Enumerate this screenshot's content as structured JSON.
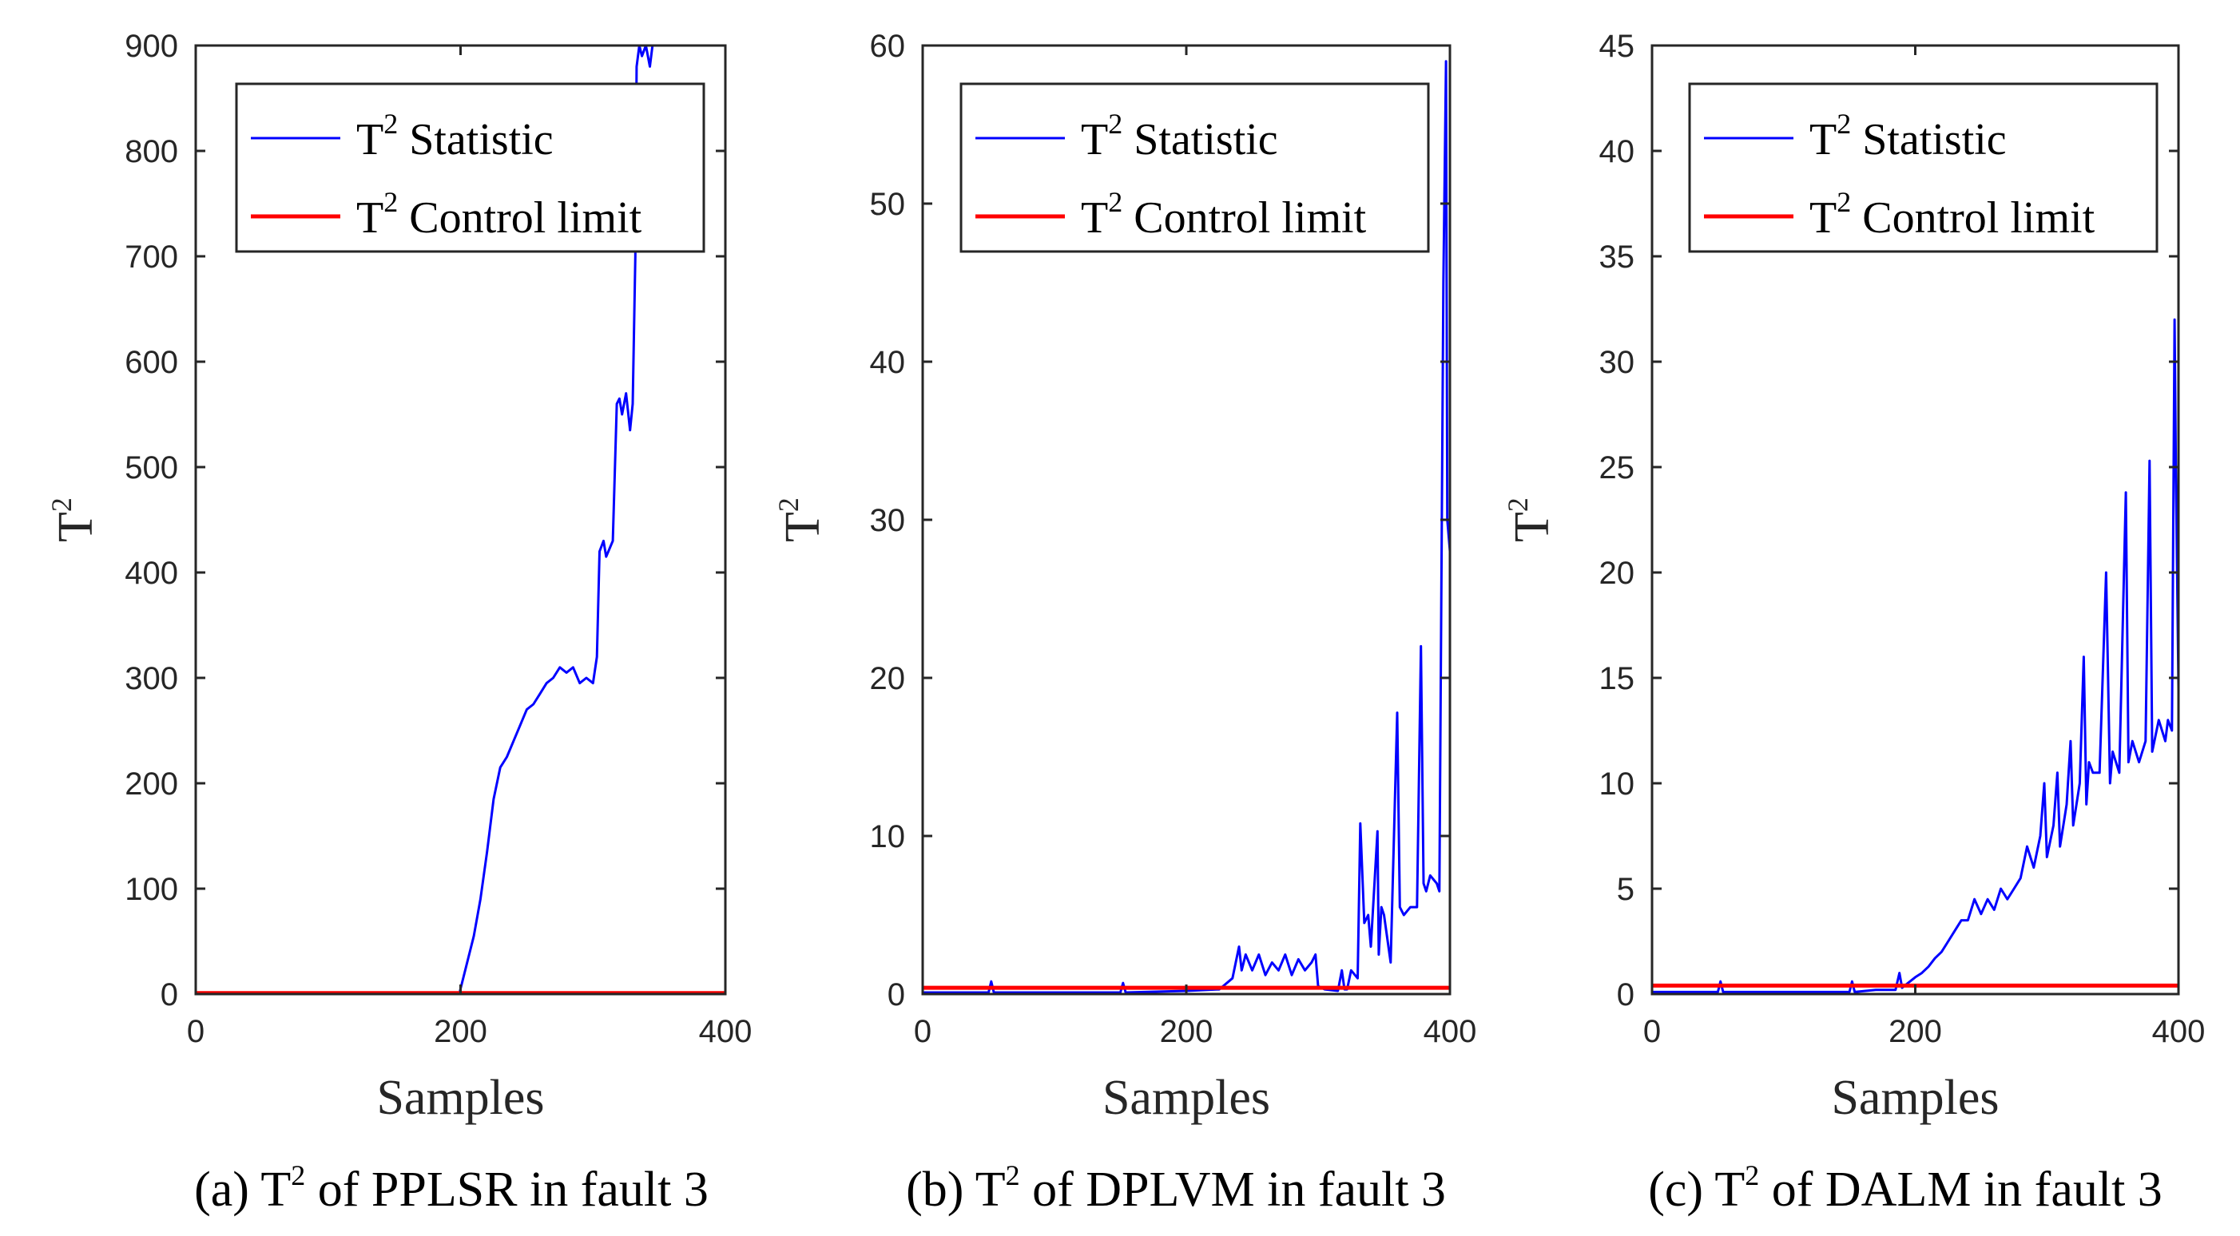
{
  "figure": {
    "panels": [
      {
        "caption": "(a) T2 of PPLSR in fault 3",
        "caption_parts": {
          "pre": "(a) T",
          "sup": "2",
          "post": " of PPLSR in fault 3"
        },
        "chart_data": {
          "type": "line",
          "title": "",
          "xlabel": "Samples",
          "ylabel": "T2",
          "ylabel_parts": {
            "base": "T",
            "sup": "2"
          },
          "xlim": [
            0,
            400
          ],
          "ylim": [
            0,
            900
          ],
          "xticks": [
            0,
            200,
            400
          ],
          "yticks": [
            0,
            100,
            200,
            300,
            400,
            500,
            600,
            700,
            800,
            900
          ],
          "legend": {
            "placement": "top-right",
            "entries": [
              {
                "base": "T",
                "sup": "2",
                "text": " Statistic",
                "color": "#0000FF"
              },
              {
                "base": "T",
                "sup": "2",
                "text": " Control limit",
                "color": "#FF0000"
              }
            ]
          },
          "series": [
            {
              "name": "T2 Statistic",
              "color": "#0000FF",
              "x": [
                0,
                199,
                200,
                205,
                210,
                215,
                220,
                225,
                230,
                235,
                240,
                245,
                250,
                255,
                260,
                265,
                270,
                275,
                280,
                285,
                290,
                295,
                300,
                303,
                305,
                308,
                310,
                315,
                318,
                320,
                322,
                325,
                328,
                330,
                332,
                333,
                335,
                337,
                340,
                343,
                345
              ],
              "values": [
                0,
                0,
                5,
                30,
                55,
                90,
                135,
                185,
                215,
                225,
                240,
                255,
                270,
                275,
                285,
                295,
                300,
                310,
                305,
                310,
                295,
                300,
                295,
                320,
                420,
                430,
                415,
                430,
                560,
                565,
                550,
                570,
                535,
                560,
                700,
                880,
                900,
                890,
                900,
                880,
                900
              ]
            },
            {
              "name": "T2 Control limit",
              "color": "#FF0000",
              "x": [
                0,
                400
              ],
              "values": [
                1,
                1
              ]
            }
          ]
        }
      },
      {
        "caption": "(b) T2 of DPLVM in fault 3",
        "caption_parts": {
          "pre": "(b) T",
          "sup": "2",
          "post": " of DPLVM in fault 3"
        },
        "chart_data": {
          "type": "line",
          "title": "",
          "xlabel": "Samples",
          "ylabel": "T2",
          "ylabel_parts": {
            "base": "T",
            "sup": "2"
          },
          "xlim": [
            0,
            400
          ],
          "ylim": [
            0,
            60
          ],
          "xticks": [
            0,
            200,
            400
          ],
          "yticks": [
            0,
            10,
            20,
            30,
            40,
            50,
            60
          ],
          "legend": {
            "placement": "top-right",
            "entries": [
              {
                "base": "T",
                "sup": "2",
                "text": " Statistic",
                "color": "#0000FF"
              },
              {
                "base": "T",
                "sup": "2",
                "text": " Control limit",
                "color": "#FF0000"
              }
            ]
          },
          "series": [
            {
              "name": "T2 Statistic",
              "color": "#0000FF",
              "x": [
                0,
                50,
                52,
                54,
                100,
                150,
                152,
                154,
                200,
                225,
                235,
                240,
                242,
                245,
                250,
                255,
                260,
                265,
                270,
                275,
                280,
                285,
                290,
                295,
                298,
                300,
                305,
                315,
                318,
                320,
                322,
                325,
                330,
                332,
                335,
                338,
                340,
                345,
                346,
                348,
                350,
                355,
                360,
                362,
                365,
                370,
                375,
                378,
                380,
                382,
                385,
                390,
                392,
                395,
                397,
                398,
                400
              ],
              "values": [
                0.1,
                0.1,
                0.8,
                0.1,
                0.1,
                0.1,
                0.7,
                0.1,
                0.2,
                0.3,
                1.0,
                3.0,
                1.5,
                2.5,
                1.5,
                2.5,
                1.2,
                2.0,
                1.5,
                2.5,
                1.2,
                2.2,
                1.5,
                2.0,
                2.5,
                0.5,
                0.3,
                0.2,
                1.5,
                0.3,
                0.3,
                1.5,
                1.0,
                10.8,
                4.5,
                5.0,
                3.0,
                10.3,
                2.5,
                5.5,
                5.0,
                2.0,
                17.8,
                5.5,
                5.0,
                5.5,
                5.5,
                22.0,
                7.0,
                6.5,
                7.5,
                7.0,
                6.5,
                45.0,
                59.0,
                30.0,
                28.0
              ]
            },
            {
              "name": "T2 Control limit",
              "color": "#FF0000",
              "x": [
                0,
                400
              ],
              "values": [
                0.4,
                0.4
              ]
            }
          ]
        }
      },
      {
        "caption": "(c) T2 of DALM in fault 3",
        "caption_parts": {
          "pre": "(c) T",
          "sup": "2",
          "post": " of DALM in fault 3"
        },
        "chart_data": {
          "type": "line",
          "title": "",
          "xlabel": "Samples",
          "ylabel": "T2",
          "ylabel_parts": {
            "base": "T",
            "sup": "2"
          },
          "xlim": [
            0,
            400
          ],
          "ylim": [
            0,
            45
          ],
          "xticks": [
            0,
            200,
            400
          ],
          "yticks": [
            0,
            5,
            10,
            15,
            20,
            25,
            30,
            35,
            40,
            45
          ],
          "legend": {
            "placement": "top-right",
            "entries": [
              {
                "base": "T",
                "sup": "2",
                "text": " Statistic",
                "color": "#0000FF"
              },
              {
                "base": "T",
                "sup": "2",
                "text": " Control limit",
                "color": "#FF0000"
              }
            ]
          },
          "series": [
            {
              "name": "T2 Statistic",
              "color": "#0000FF",
              "x": [
                0,
                50,
                52,
                54,
                100,
                150,
                152,
                154,
                170,
                185,
                188,
                190,
                200,
                205,
                210,
                215,
                220,
                225,
                230,
                235,
                240,
                245,
                250,
                255,
                260,
                265,
                270,
                275,
                280,
                285,
                290,
                295,
                298,
                300,
                305,
                308,
                310,
                315,
                318,
                320,
                325,
                328,
                330,
                332,
                335,
                340,
                345,
                348,
                350,
                355,
                360,
                362,
                365,
                370,
                375,
                378,
                380,
                385,
                390,
                392,
                395,
                397,
                398,
                400
              ],
              "values": [
                0.1,
                0.1,
                0.6,
                0.1,
                0.1,
                0.1,
                0.6,
                0.1,
                0.2,
                0.2,
                1.0,
                0.3,
                0.8,
                1.0,
                1.3,
                1.7,
                2.0,
                2.5,
                3.0,
                3.5,
                3.5,
                4.5,
                3.8,
                4.5,
                4.0,
                5.0,
                4.5,
                5.0,
                5.5,
                7.0,
                6.0,
                7.5,
                10.0,
                6.5,
                8.0,
                10.5,
                7.0,
                9.0,
                12.0,
                8.0,
                10.0,
                16.0,
                9.0,
                11.0,
                10.5,
                10.5,
                20.0,
                10.0,
                11.5,
                10.5,
                23.8,
                11.0,
                12.0,
                11.0,
                12.0,
                25.3,
                11.5,
                13.0,
                12.0,
                13.0,
                12.5,
                32.0,
                25.0,
                14.5
              ]
            },
            {
              "name": "T2 Control limit",
              "color": "#FF0000",
              "x": [
                0,
                400
              ],
              "values": [
                0.4,
                0.4
              ]
            }
          ]
        }
      }
    ]
  }
}
